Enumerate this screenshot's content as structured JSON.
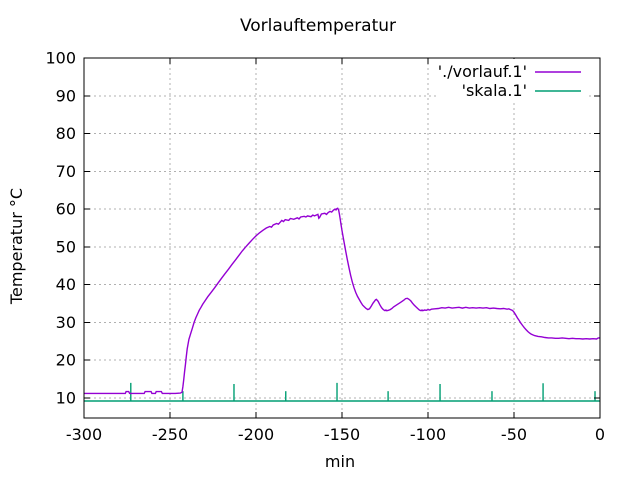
{
  "chart_data": {
    "type": "line",
    "title": "Vorlauftemperatur",
    "xlabel": "min",
    "ylabel": "Temperatur °C",
    "x_range": [
      -300,
      0
    ],
    "y_range": [
      4.7,
      100
    ],
    "x_ticks": [
      -300,
      -250,
      -200,
      -150,
      -100,
      -50,
      0
    ],
    "y_ticks": [
      10,
      20,
      30,
      40,
      50,
      60,
      70,
      80,
      90,
      100
    ],
    "grid": true,
    "grid_style": "dotted-gray",
    "background_color": "#ffffff",
    "border_color": "#000000",
    "legend_position": "top-right-inside-opaque",
    "series": [
      {
        "name": "'./vorlauf.1'",
        "color": "#9400d3",
        "style": "line",
        "points": [
          [
            -300,
            11.2
          ],
          [
            -296,
            11.2
          ],
          [
            -293,
            11.2
          ],
          [
            -290,
            11.2
          ],
          [
            -287,
            11.2
          ],
          [
            -285,
            11.2
          ],
          [
            -276,
            11.2
          ],
          [
            -275.5,
            11.7
          ],
          [
            -274,
            11.7
          ],
          [
            -273.5,
            11.2
          ],
          [
            -265,
            11.2
          ],
          [
            -264.5,
            11.7
          ],
          [
            -261,
            11.7
          ],
          [
            -260.5,
            11.2
          ],
          [
            -258.5,
            11.2
          ],
          [
            -258,
            11.7
          ],
          [
            -255,
            11.7
          ],
          [
            -254.5,
            11.2
          ],
          [
            -250,
            11.2
          ],
          [
            -247,
            11.2
          ],
          [
            -244,
            11.3
          ],
          [
            -243,
            11.5
          ],
          [
            -242.5,
            13
          ],
          [
            -242,
            15
          ],
          [
            -241.5,
            17
          ],
          [
            -241,
            19
          ],
          [
            -240.5,
            21
          ],
          [
            -240,
            23
          ],
          [
            -239,
            25.5
          ],
          [
            -238,
            27
          ],
          [
            -237,
            28.5
          ],
          [
            -236,
            30
          ],
          [
            -235,
            31.2
          ],
          [
            -234,
            32.2
          ],
          [
            -233,
            33.2
          ],
          [
            -232,
            34
          ],
          [
            -231,
            34.8
          ],
          [
            -230,
            35.5
          ],
          [
            -228,
            36.8
          ],
          [
            -226,
            38
          ],
          [
            -224,
            39.2
          ],
          [
            -222,
            40.5
          ],
          [
            -220,
            41.7
          ],
          [
            -218,
            42.9
          ],
          [
            -216,
            44.1
          ],
          [
            -214,
            45.3
          ],
          [
            -212,
            46.5
          ],
          [
            -210,
            47.7
          ],
          [
            -208,
            48.9
          ],
          [
            -206,
            50
          ],
          [
            -204,
            51
          ],
          [
            -202,
            52
          ],
          [
            -200,
            52.9
          ],
          [
            -198,
            53.7
          ],
          [
            -196,
            54.4
          ],
          [
            -194,
            55
          ],
          [
            -192,
            55.4
          ],
          [
            -191,
            55.2
          ],
          [
            -190,
            55.8
          ],
          [
            -188,
            56.2
          ],
          [
            -187,
            56
          ],
          [
            -186,
            56.5
          ],
          [
            -185,
            57
          ],
          [
            -184,
            56.7
          ],
          [
            -183,
            57.2
          ],
          [
            -181,
            57
          ],
          [
            -180,
            57.5
          ],
          [
            -178,
            57.3
          ],
          [
            -176,
            57.7
          ],
          [
            -175,
            57.4
          ],
          [
            -174,
            57.9
          ],
          [
            -172,
            58.1
          ],
          [
            -171,
            57.9
          ],
          [
            -170,
            58.2
          ],
          [
            -168,
            58
          ],
          [
            -167,
            58.4
          ],
          [
            -166,
            58.2
          ],
          [
            -164,
            58.6
          ],
          [
            -163.5,
            57.6
          ],
          [
            -163,
            57.8
          ],
          [
            -162,
            58.7
          ],
          [
            -160,
            58.9
          ],
          [
            -159,
            58.6
          ],
          [
            -158,
            59.1
          ],
          [
            -157,
            59.4
          ],
          [
            -156,
            59.2
          ],
          [
            -155,
            59.7
          ],
          [
            -154,
            60
          ],
          [
            -153.5,
            59.8
          ],
          [
            -153,
            60.1
          ],
          [
            -152.5,
            60.2
          ],
          [
            -152,
            59.8
          ],
          [
            -151.5,
            58.7
          ],
          [
            -151,
            57.2
          ],
          [
            -150.5,
            55.8
          ],
          [
            -150,
            54.3
          ],
          [
            -149,
            51.8
          ],
          [
            -148,
            49.3
          ],
          [
            -147,
            46.8
          ],
          [
            -146,
            44.6
          ],
          [
            -145,
            42.5
          ],
          [
            -144,
            40.7
          ],
          [
            -143,
            39.2
          ],
          [
            -142,
            37.9
          ],
          [
            -141,
            36.9
          ],
          [
            -140,
            36.1
          ],
          [
            -139,
            35.3
          ],
          [
            -138,
            34.6
          ],
          [
            -137,
            34.1
          ],
          [
            -136,
            33.7
          ],
          [
            -135,
            33.4
          ],
          [
            -134,
            33.6
          ],
          [
            -133,
            34.3
          ],
          [
            -132,
            35.1
          ],
          [
            -131,
            35.7
          ],
          [
            -130.5,
            36
          ],
          [
            -130,
            36.1
          ],
          [
            -129,
            35.6
          ],
          [
            -128,
            34.7
          ],
          [
            -127,
            33.9
          ],
          [
            -126,
            33.4
          ],
          [
            -125,
            33.1
          ],
          [
            -124.5,
            33.3
          ],
          [
            -124,
            33.1
          ],
          [
            -123,
            33.2
          ],
          [
            -122,
            33.4
          ],
          [
            -121,
            33.7
          ],
          [
            -120,
            34.1
          ],
          [
            -118,
            34.7
          ],
          [
            -116,
            35.3
          ],
          [
            -114,
            35.9
          ],
          [
            -113,
            36.3
          ],
          [
            -112,
            36.4
          ],
          [
            -111,
            36.1
          ],
          [
            -110,
            35.7
          ],
          [
            -109,
            35.1
          ],
          [
            -108,
            34.6
          ],
          [
            -107,
            34.1
          ],
          [
            -106,
            33.7
          ],
          [
            -105,
            33.3
          ],
          [
            -104,
            33.1
          ],
          [
            -103.5,
            33.3
          ],
          [
            -103,
            33.1
          ],
          [
            -102,
            33.3
          ],
          [
            -101,
            33.2
          ],
          [
            -100,
            33.4
          ],
          [
            -99,
            33.3
          ],
          [
            -98,
            33.5
          ],
          [
            -96,
            33.6
          ],
          [
            -94,
            33.7
          ],
          [
            -92,
            33.9
          ],
          [
            -90,
            33.8
          ],
          [
            -88,
            34
          ],
          [
            -86,
            33.8
          ],
          [
            -84,
            33.9
          ],
          [
            -82,
            34
          ],
          [
            -80,
            33.8
          ],
          [
            -78,
            34
          ],
          [
            -76,
            33.8
          ],
          [
            -74,
            33.9
          ],
          [
            -72,
            33.8
          ],
          [
            -70,
            33.9
          ],
          [
            -68,
            33.8
          ],
          [
            -66,
            33.9
          ],
          [
            -64,
            33.7
          ],
          [
            -62,
            33.8
          ],
          [
            -60,
            33.7
          ],
          [
            -58,
            33.6
          ],
          [
            -56,
            33.7
          ],
          [
            -54,
            33.5
          ],
          [
            -53,
            33.6
          ],
          [
            -52,
            33.4
          ],
          [
            -51,
            33.2
          ],
          [
            -50.5,
            33
          ],
          [
            -50,
            32.7
          ],
          [
            -49,
            32
          ],
          [
            -48,
            31.2
          ],
          [
            -47,
            30.5
          ],
          [
            -46,
            29.8
          ],
          [
            -45,
            29.2
          ],
          [
            -44,
            28.6
          ],
          [
            -43,
            28.1
          ],
          [
            -42,
            27.6
          ],
          [
            -41,
            27.2
          ],
          [
            -40,
            26.9
          ],
          [
            -39,
            26.7
          ],
          [
            -38,
            26.5
          ],
          [
            -36,
            26.3
          ],
          [
            -34,
            26.2
          ],
          [
            -32,
            26
          ],
          [
            -30,
            25.9
          ],
          [
            -28,
            25.9
          ],
          [
            -26,
            25.8
          ],
          [
            -24,
            25.8
          ],
          [
            -22,
            25.9
          ],
          [
            -20,
            25.8
          ],
          [
            -18,
            25.7
          ],
          [
            -16,
            25.8
          ],
          [
            -14,
            25.7
          ],
          [
            -12,
            25.7
          ],
          [
            -10,
            25.6
          ],
          [
            -8,
            25.7
          ],
          [
            -6,
            25.6
          ],
          [
            -4,
            25.7
          ],
          [
            -2,
            25.6
          ],
          [
            -1,
            25.9
          ],
          [
            0,
            25.9
          ]
        ]
      },
      {
        "name": "'skala.1'",
        "color": "#009e73",
        "style": "baseline-with-impulses",
        "baseline": 9.2,
        "spikes": [
          [
            -272.8,
            14
          ],
          [
            -242.5,
            11.8
          ],
          [
            -212.8,
            13.7
          ],
          [
            -182.7,
            11.8
          ],
          [
            -152.9,
            14
          ],
          [
            -123.2,
            11.8
          ],
          [
            -93,
            13.7
          ],
          [
            -62.8,
            11.8
          ],
          [
            -33.1,
            13.9
          ],
          [
            -2.9,
            11.8
          ]
        ]
      }
    ]
  }
}
